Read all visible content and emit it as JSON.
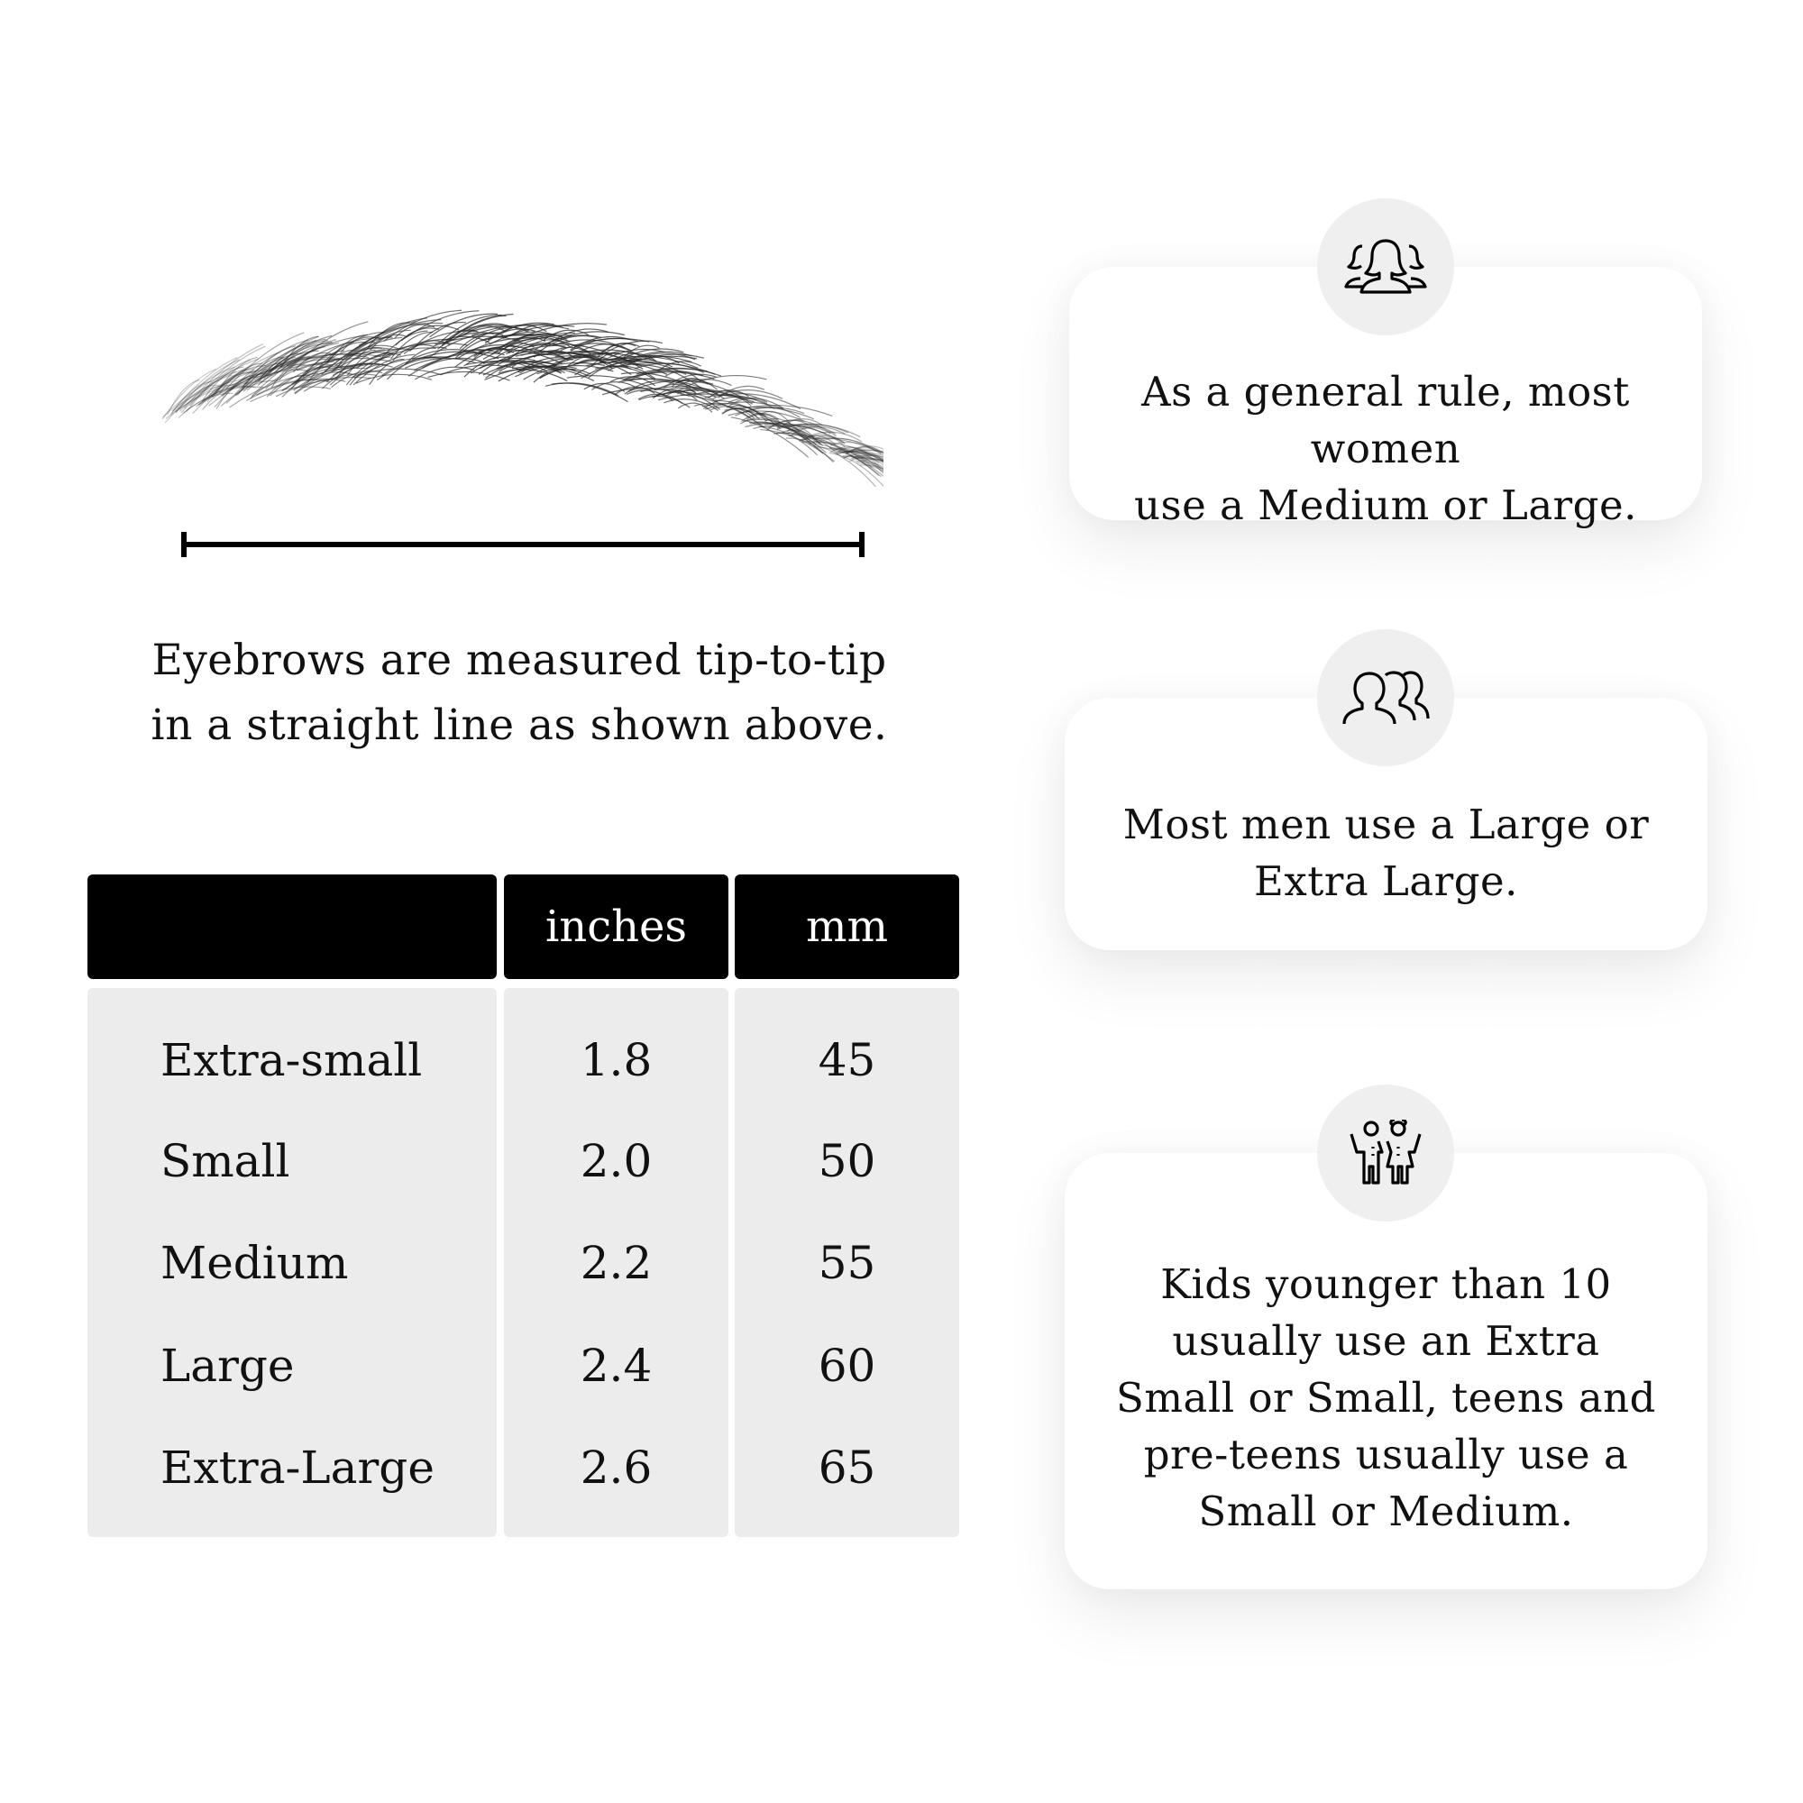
{
  "caption": {
    "line1": "Eyebrows are measured tip-to-tip",
    "line2": "in a straight line as shown above."
  },
  "table": {
    "headers": [
      "",
      "inches",
      "mm"
    ],
    "rows": [
      {
        "size": "Extra-small",
        "inches": "1.8",
        "mm": "45"
      },
      {
        "size": "Small",
        "inches": "2.0",
        "mm": "50"
      },
      {
        "size": "Medium",
        "inches": "2.2",
        "mm": "55"
      },
      {
        "size": "Large",
        "inches": "2.4",
        "mm": "60"
      },
      {
        "size": "Extra-Large",
        "inches": "2.6",
        "mm": "65"
      }
    ]
  },
  "cards": [
    {
      "icon": "women-group-icon",
      "lines": [
        "As a general rule, most women",
        "use a Medium or Large."
      ]
    },
    {
      "icon": "men-group-icon",
      "lines": [
        "Most men use a Large or",
        "Extra Large."
      ]
    },
    {
      "icon": "kids-icon",
      "lines": [
        "Kids younger than 10",
        "usually use an Extra",
        "Small or Small, teens and",
        "pre-teens usually use a",
        "Small or Medium."
      ]
    }
  ],
  "colors": {
    "header_bg": "#000000",
    "body_bg": "#ececec",
    "icon_circle": "#efefef"
  }
}
